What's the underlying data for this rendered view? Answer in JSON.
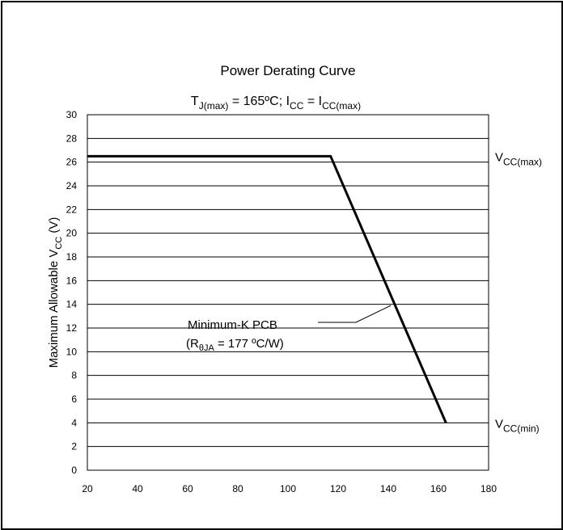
{
  "chart_data": {
    "type": "line",
    "title": "Power Derating Curve",
    "subtitle": {
      "p1": "T",
      "p1_sub": "J(max)",
      "p2": " = 165ºC; I",
      "p2_sub": "CC",
      "p3": " =  I",
      "p3_sub": "CC(max)"
    },
    "ylabel": {
      "main": "Maximum Allowable V",
      "sub": "CC",
      "unit": " (V)"
    },
    "xlim": [
      20,
      180
    ],
    "ylim": [
      0,
      30
    ],
    "x_ticks": [
      20,
      40,
      60,
      80,
      100,
      120,
      140,
      160,
      180
    ],
    "y_ticks": [
      0,
      2,
      4,
      6,
      8,
      10,
      12,
      14,
      16,
      18,
      20,
      22,
      24,
      26,
      28,
      30
    ],
    "grid": true,
    "series": [
      {
        "x": [
          20,
          117,
          163
        ],
        "y": [
          26.5,
          26.5,
          4
        ]
      }
    ],
    "reference_lines": [
      {
        "y": 26.5,
        "label_main": "V",
        "label_sub": "CC(max)"
      },
      {
        "y": 4,
        "label_main": "V",
        "label_sub": "CC(min)"
      }
    ],
    "annotation": {
      "line1": "Minimum-K PCB",
      "line2_a": "(R",
      "line2_sub": "θJA",
      "line2_b": " = 177 ºC/W)",
      "target": {
        "x": 141,
        "y": 13.9
      }
    }
  }
}
